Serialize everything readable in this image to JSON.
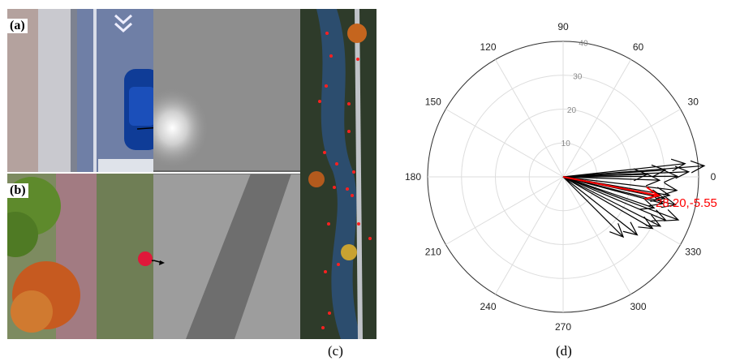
{
  "panels": {
    "a_label": "(a)",
    "b_label": "(b)",
    "c_label": "(c)",
    "d_label": "(d)"
  },
  "chart_data": {
    "type": "polar-compass",
    "title": "",
    "angle_ticks": [
      "0",
      "30",
      "60",
      "90",
      "120",
      "150",
      "180",
      "210",
      "240",
      "270",
      "300",
      "330"
    ],
    "angle_tick_values": [
      0,
      30,
      60,
      90,
      120,
      150,
      180,
      210,
      240,
      270,
      300,
      330
    ],
    "radial_ticks": [
      "10",
      "20",
      "30",
      "40"
    ],
    "radial_tick_values": [
      10,
      20,
      30,
      40
    ],
    "rmax": 40,
    "grid": true,
    "arrows": [
      {
        "r": 41.8,
        "theta": 4.5
      },
      {
        "r": 36.2,
        "theta": 6.2
      },
      {
        "r": 37.1,
        "theta": 2.3
      },
      {
        "r": 30.2,
        "theta": 3.8
      },
      {
        "r": 24.8,
        "theta": 1.7
      },
      {
        "r": 33.7,
        "theta": 0.3
      },
      {
        "r": 28.5,
        "theta": -2.0
      },
      {
        "r": 33.8,
        "theta": -6.8
      },
      {
        "r": 31.9,
        "theta": -9.9
      },
      {
        "r": 30.6,
        "theta": -12.0
      },
      {
        "r": 34.2,
        "theta": -14.0
      },
      {
        "r": 30.5,
        "theta": -15.0
      },
      {
        "r": 28.4,
        "theta": -18.9
      },
      {
        "r": 36.3,
        "theta": -20.5
      },
      {
        "r": 33.0,
        "theta": -23.0
      },
      {
        "r": 32.2,
        "theta": -26.9
      },
      {
        "r": 30.5,
        "theta": -30.0
      },
      {
        "r": 27.8,
        "theta": -38.1
      },
      {
        "r": 25.1,
        "theta": -45.0
      }
    ],
    "mean_arrow": {
      "r": 28.74,
      "theta": -11.13,
      "color": "#ff0000"
    },
    "mean_label": "28.20,-5.55",
    "colors": {
      "arrows": "#000000",
      "mean": "#ff0000",
      "grid": "#dddddd",
      "ticks": "#222222"
    }
  }
}
